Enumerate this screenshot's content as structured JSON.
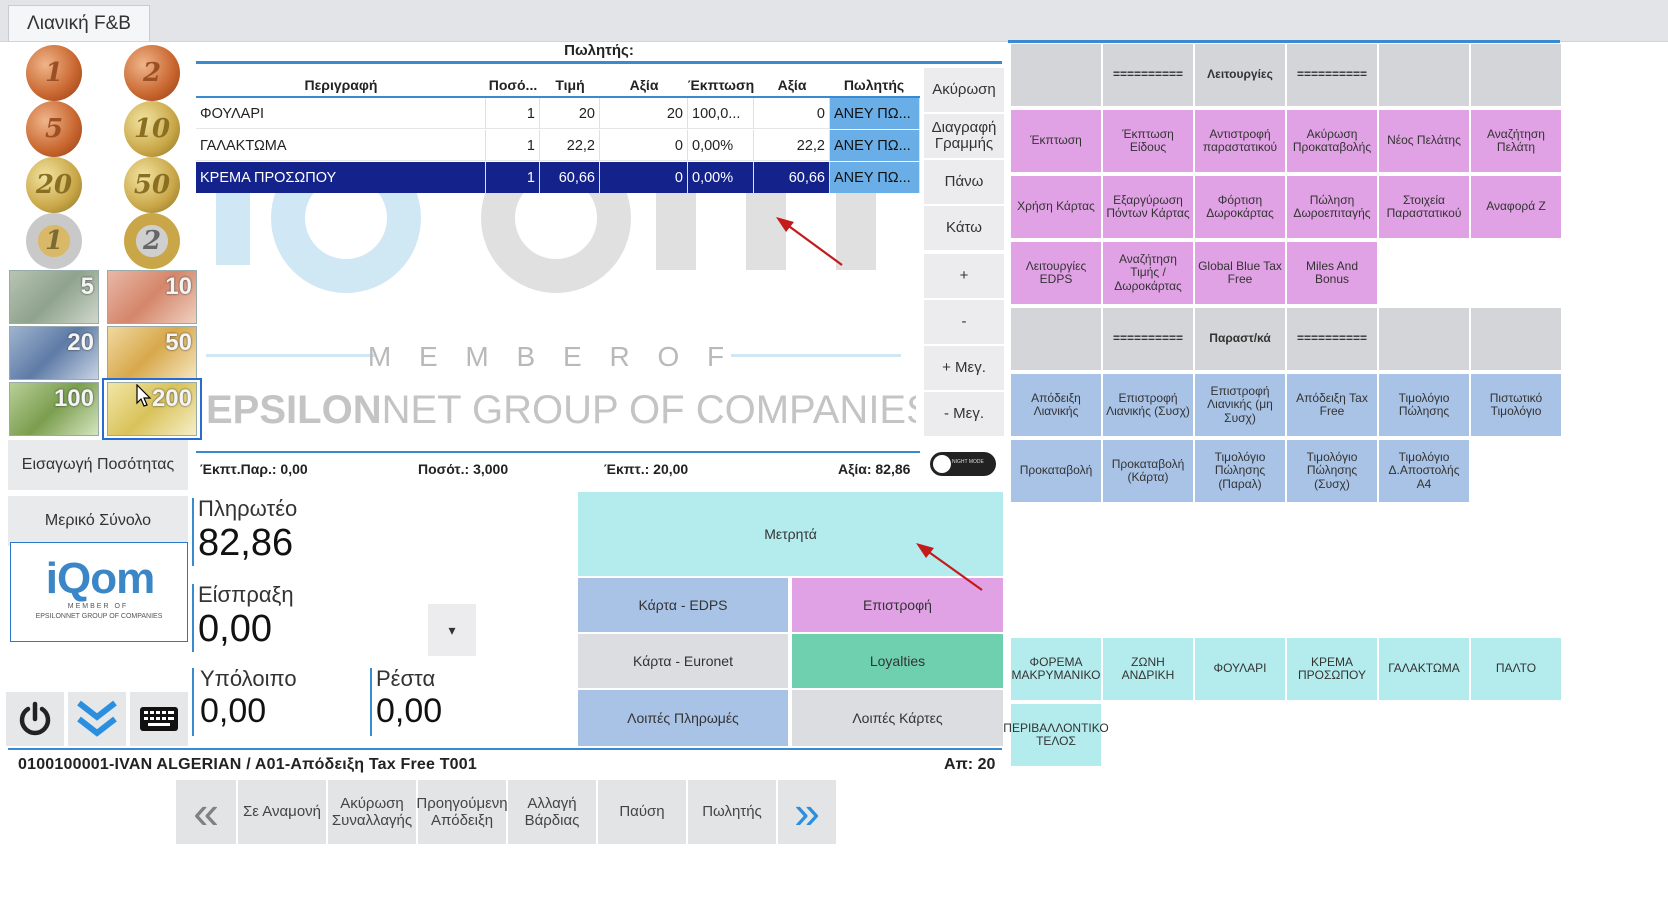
{
  "tab": {
    "label": "Λιανική F&B"
  },
  "money": {
    "coins": [
      "1",
      "2",
      "5",
      "10",
      "20",
      "50",
      "1",
      "2"
    ],
    "notes": [
      "5",
      "10",
      "20",
      "50",
      "100",
      "200"
    ]
  },
  "left_panel": {
    "quantity_btn": "Εισαγωγή Ποσότητας",
    "subtotal_btn": "Μερικό Σύνολο",
    "logo": {
      "brand": "iQom",
      "member": "MEMBER OF",
      "group": "EPSILONNET GROUP OF COMPANIES"
    }
  },
  "grid": {
    "seller_header": "Πωλητής:",
    "columns": [
      "Περιγραφή",
      "Ποσό...",
      "Τιμή",
      "Αξία",
      "Έκπτωση",
      "Αξία",
      "Πωλητής"
    ],
    "rows": [
      {
        "desc": "ΦΟΥΛΑΡΙ",
        "qty": "1",
        "price": "20",
        "value": "20",
        "disc": "100,0...",
        "total": "0",
        "seller": "ΑΝΕΥ ΠΩ..."
      },
      {
        "desc": "ΓΑΛΑΚΤΩΜΑ",
        "qty": "1",
        "price": "22,2",
        "value": "0",
        "disc": "0,00%",
        "total": "22,2",
        "seller": "ΑΝΕΥ ΠΩ..."
      },
      {
        "desc": "ΚΡΕΜΑ ΠΡΟΣΩΠΟΥ",
        "qty": "1",
        "price": "60,66",
        "value": "0",
        "disc": "0,00%",
        "total": "60,66",
        "seller": "ΑΝΕΥ ΠΩ..."
      }
    ],
    "selected_row": 2,
    "watermark": {
      "brand": "iQom",
      "member": "M E M B E R   O F",
      "group_bold": "EPSILON",
      "group_rest": "NET GROUP OF COMPANIES"
    }
  },
  "side_buttons": [
    "Ακύρωση",
    "Διαγραφή Γραμμής",
    "Πάνω",
    "Κάτω",
    "+",
    "-",
    "+ Μεγ.",
    "- Μεγ."
  ],
  "toggle_label": "NIGHT MODE",
  "totals": {
    "disc_pct": "Έκπτ.Παρ.: 0,00",
    "qty": "Ποσότ.: 3,000",
    "disc": "Έκπτ.: 20,00",
    "value": "Αξία: 82,86"
  },
  "payment": {
    "due_label": "Πληρωτέο",
    "due": "82,86",
    "received_label": "Είσπραξη",
    "received": "0,00",
    "balance_label": "Υπόλοιπο",
    "balance": "0,00",
    "change_label": "Ρέστα",
    "change": "0,00",
    "dropdown": "▾"
  },
  "pay_buttons": {
    "cash": "Μετρητά",
    "card_edps": "Κάρτα - EDPS",
    "refund": "Επιστροφή",
    "card_euronet": "Κάρτα - Euronet",
    "loyalties": "Loyalties",
    "other_payments": "Λοιπές Πληρωμές",
    "other_cards": "Λοιπές Κάρτες"
  },
  "status": {
    "customer": "0100100001-IVAN ALGERIAN / A01-Απόδειξη Tax Free T001",
    "number": "Απ: 20"
  },
  "bottom_buttons": [
    "«",
    "Σε Αναμονή",
    "Ακύρωση Συναλλαγής",
    "Προηγούμενη Απόδειξη",
    "Αλλαγή Βάρδιας",
    "Παύση",
    "Πωλητής",
    "»"
  ],
  "right_panel": {
    "row1": [
      "",
      "==========",
      "Λειτουργίες",
      "==========",
      "",
      ""
    ],
    "row2": [
      "Έκπτωση",
      "Έκπτωση Είδους",
      "Αντιστροφή παραστατικού",
      "Ακύρωση Προκαταβολής",
      "Νέος Πελάτης",
      "Αναζήτηση Πελάτη"
    ],
    "row3": [
      "Χρήση Κάρτας",
      "Εξαργύρωση Πόντων Κάρτας",
      "Φόρτιση Δωροκάρτας",
      "Πώληση Δωροεπιταγής",
      "Στοιχεία Παραστατικού",
      "Αναφορά Ζ"
    ],
    "row4": [
      "Λειτουργίες EDPS",
      "Αναζήτηση Τιμής / Δωροκάρτας",
      "Global Blue Tax Free",
      "Miles And Bonus"
    ],
    "row5": [
      "",
      "==========",
      "Παραστ/κά",
      "==========",
      "",
      ""
    ],
    "row6": [
      "Απόδειξη Λιανικής",
      "Επιστροφή Λιανικής (Συσχ)",
      "Επιστροφή Λιανικής (μη Συσχ)",
      "Απόδειξη Tax Free",
      "Τιμολόγιο Πώλησης",
      "Πιστωτικό Τιμολόγιο"
    ],
    "row7": [
      "Προκαταβολή",
      "Προκαταβολή (Κάρτα)",
      "Τιμολόγιο Πώλησης (Παραλ)",
      "Τιμολόγιο Πώλησης (Συσχ)",
      "Τιμολόγιο Δ.Αποστολής Α4"
    ],
    "row8": [
      "ΦΟΡΕΜΑ ΜΑΚΡΥΜΑΝΙΚΟ",
      "ΖΩΝΗ ΑΝΔΡΙΚΗ",
      "ΦΟΥΛΑΡΙ",
      "ΚΡΕΜΑ ΠΡΟΣΩΠΟΥ",
      "ΓΑΛΑΚΤΩΜΑ",
      "ΠΑΛΤΟ"
    ],
    "row9": [
      "ΠΕΡΙΒΑΛΛΟΝΤΙΚΟ ΤΕΛΟΣ"
    ]
  },
  "colors": {
    "accent": "#3a8ad0",
    "selected_row": "#14228c",
    "pink": "#e0a2e4",
    "blue": "#a9c3e6",
    "cyan": "#b4ecee",
    "green": "#6fd0b0",
    "annotation_arrow": "#c41a1a"
  }
}
